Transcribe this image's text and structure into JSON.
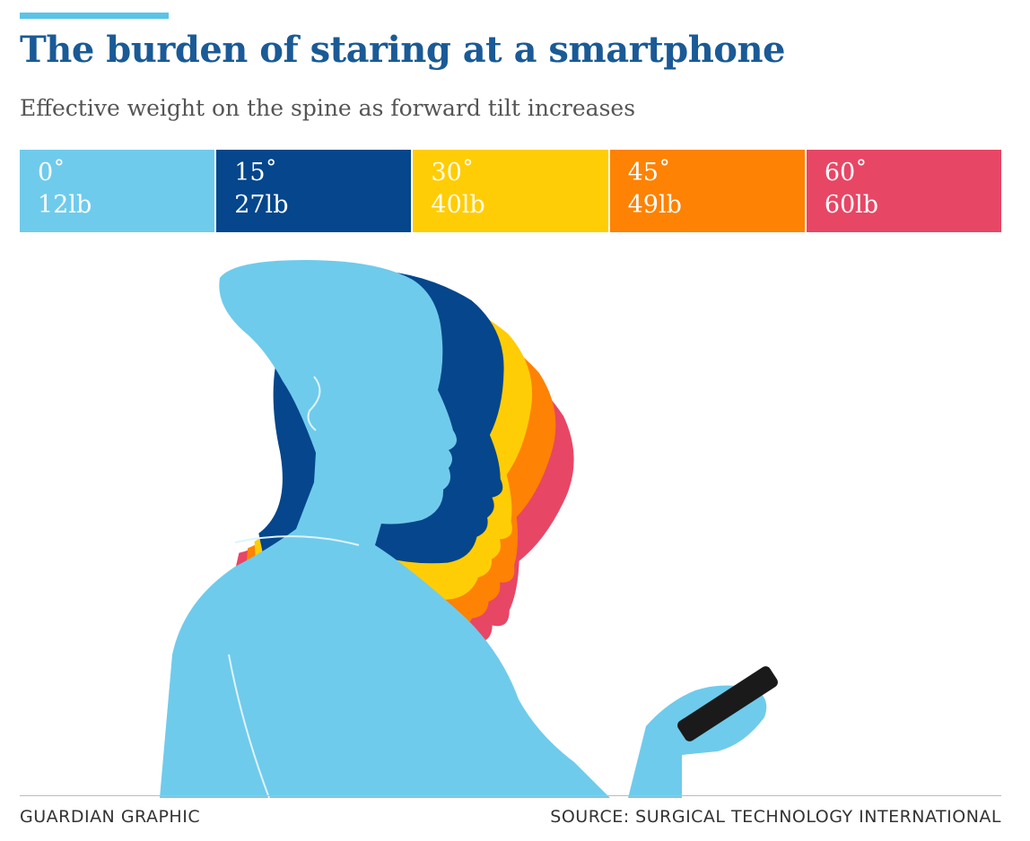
{
  "title": "The burden of staring at a smartphone",
  "subtitle": "Effective weight on the spine as forward tilt increases",
  "chart_data": {
    "type": "table",
    "categories": [
      "0˚",
      "15˚",
      "30˚",
      "45˚",
      "60˚"
    ],
    "angles_deg": [
      0,
      15,
      30,
      45,
      60
    ],
    "weights_lb": [
      12,
      27,
      40,
      49,
      60
    ],
    "labels": [
      {
        "angle": "0˚",
        "weight": "12lb",
        "color": "#6fcbeb"
      },
      {
        "angle": "15˚",
        "weight": "27lb",
        "color": "#05468c"
      },
      {
        "angle": "30˚",
        "weight": "40lb",
        "color": "#ffcd05"
      },
      {
        "angle": "45˚",
        "weight": "49lb",
        "color": "#fe8203"
      },
      {
        "angle": "60˚",
        "weight": "60lb",
        "color": "#e84665"
      }
    ]
  },
  "illustration": {
    "body_color": "#6fcbeb",
    "phone_color": "#1a1a1a",
    "line_color": "#dff3fb"
  },
  "footer": {
    "credit": "GUARDIAN GRAPHIC",
    "source": "SOURCE: SURGICAL TECHNOLOGY INTERNATIONAL"
  }
}
